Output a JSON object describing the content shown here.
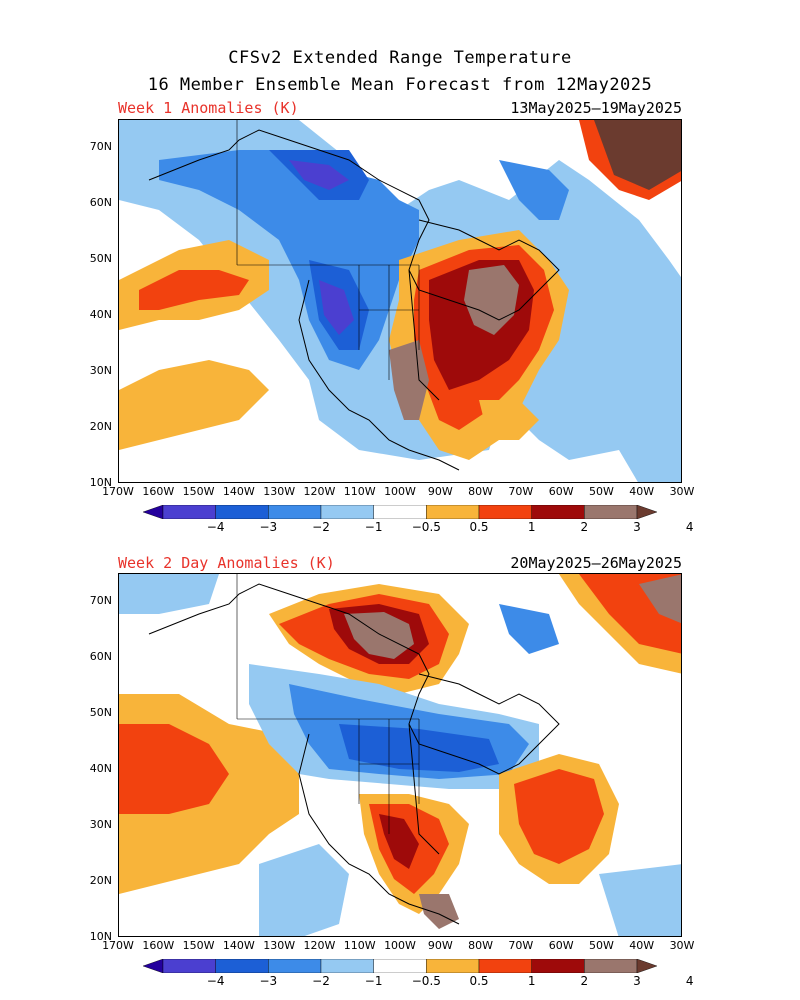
{
  "title_line1": "CFSv2 Extended Range Temperature",
  "title_line2": "16 Member Ensemble Mean Forecast from 12May2025",
  "panels": [
    {
      "label": "Week 1 Anomalies (K)",
      "dates": "13May2025–19May2025"
    },
    {
      "label": "Week 2 Day Anomalies (K)",
      "dates": "20May2025–26May2025"
    }
  ],
  "lat_labels": [
    "70N",
    "60N",
    "50N",
    "40N",
    "30N",
    "20N",
    "10N"
  ],
  "lon_labels": [
    "170W",
    "160W",
    "150W",
    "140W",
    "130W",
    "120W",
    "110W",
    "100W",
    "90W",
    "80W",
    "70W",
    "60W",
    "50W",
    "40W",
    "30W"
  ],
  "colorbar": {
    "labels": [
      "−4",
      "−3",
      "−2",
      "−1",
      "−0.5",
      "0.5",
      "1",
      "2",
      "3",
      "4"
    ],
    "colors": [
      "#24009d",
      "#4b3fd0",
      "#1c5fd6",
      "#3d8be8",
      "#95c9f2",
      "#ffffff",
      "#f8b43a",
      "#f2420f",
      "#9e0a0a",
      "#9a766d",
      "#6b3b2f"
    ]
  }
}
